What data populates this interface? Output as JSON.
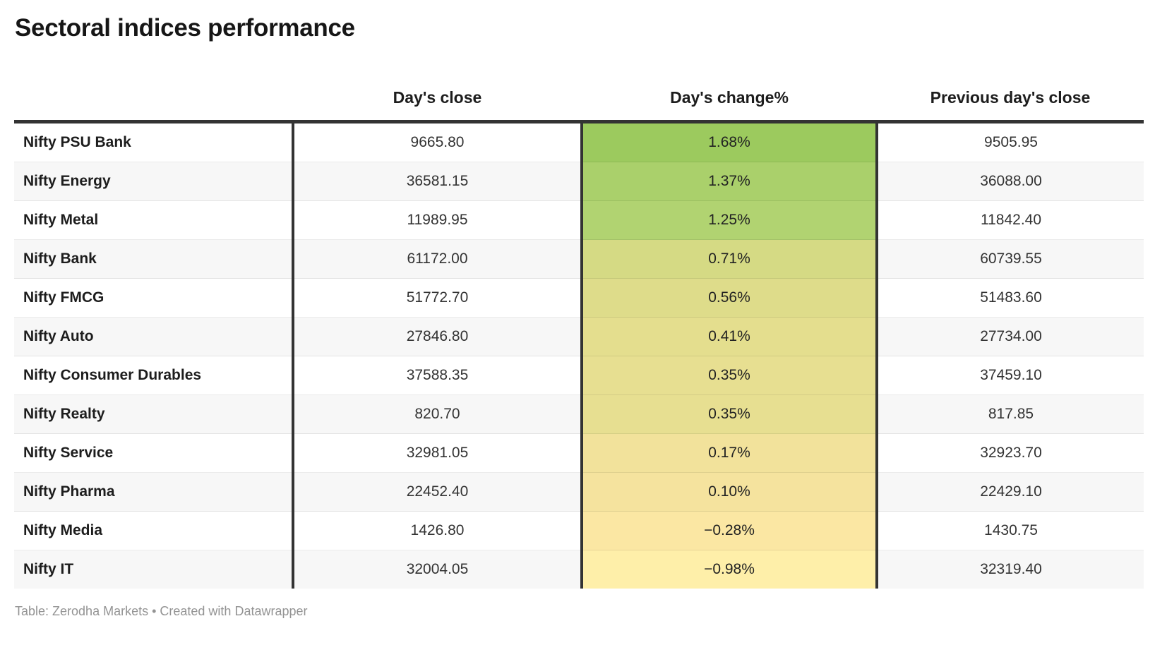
{
  "title": "Sectoral indices performance",
  "footer_credit": "Table: Zerodha Markets • Created with Datawrapper",
  "colors": {
    "table_border_dark": "#333333",
    "row_alt_background": "#f7f7f7",
    "row_separator": "rgba(0,0,0,0.08)",
    "heatmap_positive_max": "#9cca5e",
    "heatmap_negative_min": "#feefa9",
    "footer_text": "#939393"
  },
  "chart_data": {
    "type": "table",
    "title": "Sectoral indices performance",
    "columns": [
      "",
      "Day's close",
      "Day's change%",
      "Previous day's close"
    ],
    "heatmap_column": "Day's change%",
    "rows": [
      {
        "name": "Nifty PSU Bank",
        "days_close": "9665.80",
        "days_change_pct": "1.68%",
        "prev_close": "9505.95",
        "change_value": 1.68,
        "cell_color": "#9cca5e"
      },
      {
        "name": "Nifty Energy",
        "days_close": "36581.15",
        "days_change_pct": "1.37%",
        "prev_close": "36088.00",
        "change_value": 1.37,
        "cell_color": "#aad06b"
      },
      {
        "name": "Nifty Metal",
        "days_close": "11989.95",
        "days_change_pct": "1.25%",
        "prev_close": "11842.40",
        "change_value": 1.25,
        "cell_color": "#b1d371"
      },
      {
        "name": "Nifty Bank",
        "days_close": "61172.00",
        "days_change_pct": "0.71%",
        "prev_close": "60739.55",
        "change_value": 0.71,
        "cell_color": "#d5da84"
      },
      {
        "name": "Nifty FMCG",
        "days_close": "51772.70",
        "days_change_pct": "0.56%",
        "prev_close": "51483.60",
        "change_value": 0.56,
        "cell_color": "#dedc8a"
      },
      {
        "name": "Nifty Auto",
        "days_close": "27846.80",
        "days_change_pct": "0.41%",
        "prev_close": "27734.00",
        "change_value": 0.41,
        "cell_color": "#e4de8e"
      },
      {
        "name": "Nifty Consumer Durables",
        "days_close": "37588.35",
        "days_change_pct": "0.35%",
        "prev_close": "37459.10",
        "change_value": 0.35,
        "cell_color": "#e7df91"
      },
      {
        "name": "Nifty Realty",
        "days_close": "820.70",
        "days_change_pct": "0.35%",
        "prev_close": "817.85",
        "change_value": 0.35,
        "cell_color": "#e7df91"
      },
      {
        "name": "Nifty Service",
        "days_close": "32981.05",
        "days_change_pct": "0.17%",
        "prev_close": "32923.70",
        "change_value": 0.17,
        "cell_color": "#f2e29b"
      },
      {
        "name": "Nifty Pharma",
        "days_close": "22452.40",
        "days_change_pct": "0.10%",
        "prev_close": "22429.10",
        "change_value": 0.1,
        "cell_color": "#f5e39e"
      },
      {
        "name": "Nifty Media",
        "days_close": "1426.80",
        "days_change_pct": "−0.28%",
        "prev_close": "1430.75",
        "change_value": -0.28,
        "cell_color": "#fbe7a3"
      },
      {
        "name": "Nifty IT",
        "days_close": "32004.05",
        "days_change_pct": "−0.98%",
        "prev_close": "32319.40",
        "change_value": -0.98,
        "cell_color": "#feefa9"
      }
    ]
  }
}
